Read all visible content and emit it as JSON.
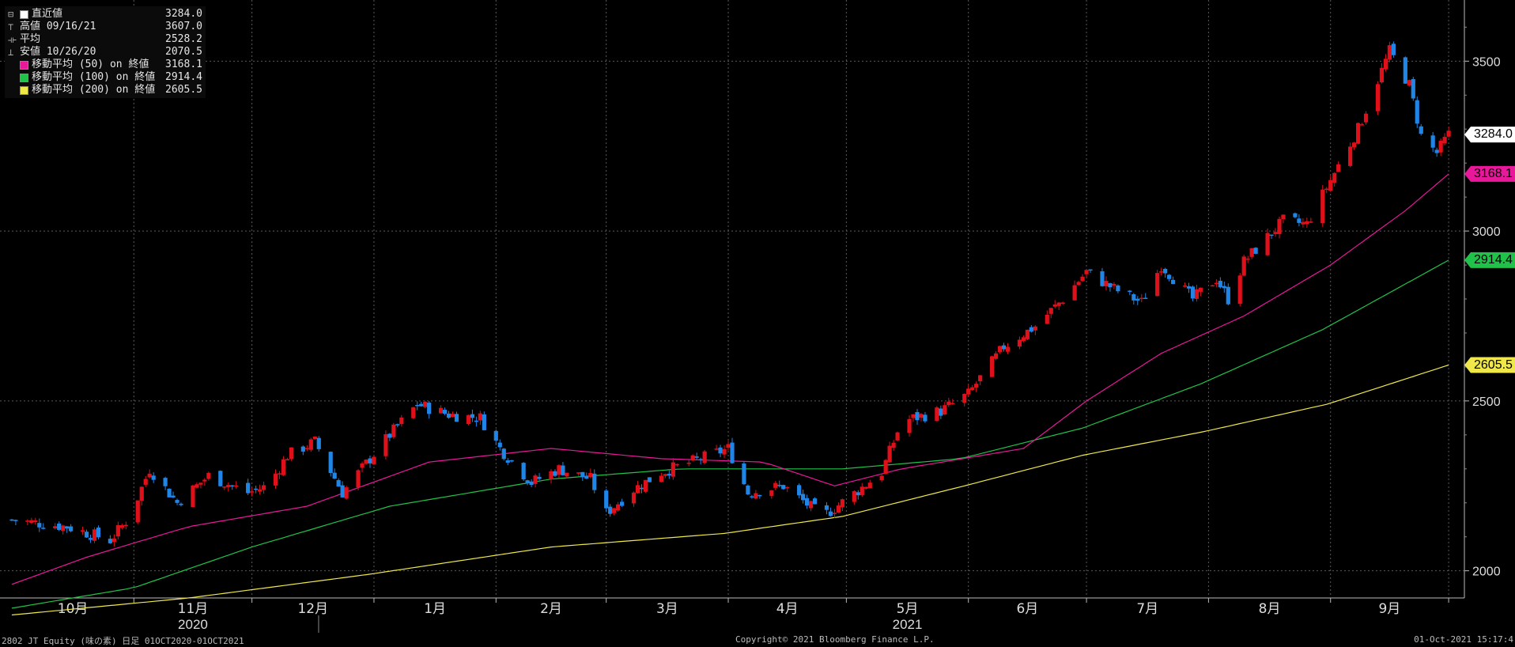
{
  "legend": {
    "items": [
      {
        "label": "直近値",
        "value": "3284.0",
        "color": "#ffffff",
        "kind": "swatch"
      },
      {
        "label": "高値 09/16/21",
        "value": "3607.0",
        "kind": "high-icon"
      },
      {
        "label": "平均",
        "value": "2528.2",
        "kind": "average-icon"
      },
      {
        "label": "安値 10/26/20",
        "value": "2070.5",
        "kind": "low-icon"
      },
      {
        "label": "移動平均 (50) on 終値",
        "value": "3168.1",
        "color": "#e8189a",
        "kind": "swatch"
      },
      {
        "label": "移動平均 (100) on 終値",
        "value": "2914.4",
        "color": "#21c24a",
        "kind": "swatch"
      },
      {
        "label": "移動平均 (200) on 終値",
        "value": "2605.5",
        "color": "#f0e84a",
        "kind": "swatch"
      }
    ]
  },
  "footer": {
    "left": "2802 JT Equity (味の素)  日足 01OCT2020-01OCT2021",
    "center": "Copyright© 2021 Bloomberg Finance L.P.",
    "right": "01-Oct-2021 15:17:4"
  },
  "chart_data": {
    "type": "candlestick",
    "ylim": [
      1920,
      3680
    ],
    "yticks": [
      2000,
      2500,
      3000,
      3500
    ],
    "months": [
      "10月",
      "11月",
      "12月",
      "1月",
      "2月",
      "3月",
      "4月",
      "5月",
      "6月",
      "7月",
      "8月",
      "9月"
    ],
    "years": [
      "2020",
      "2021"
    ],
    "colors": {
      "up": "#e0101a",
      "down": "#1f86e8",
      "grid": "#5a5a5a",
      "ma50": "#e8189a",
      "ma100": "#21c24a",
      "ma200": "#f0e84a"
    },
    "price_keys": [
      [
        "2020-10-01",
        2150
      ],
      [
        "2020-10-15",
        2130
      ],
      [
        "2020-10-26",
        2090
      ],
      [
        "2020-10-31",
        2160
      ],
      [
        "2020-11-05",
        2300
      ],
      [
        "2020-11-12",
        2200
      ],
      [
        "2020-11-20",
        2280
      ],
      [
        "2020-11-30",
        2230
      ],
      [
        "2020-12-05",
        2250
      ],
      [
        "2020-12-10",
        2340
      ],
      [
        "2020-12-17",
        2380
      ],
      [
        "2020-12-24",
        2230
      ],
      [
        "2020-12-31",
        2330
      ],
      [
        "2021-01-05",
        2400
      ],
      [
        "2021-01-12",
        2490
      ],
      [
        "2021-01-20",
        2460
      ],
      [
        "2021-01-28",
        2450
      ],
      [
        "2021-02-02",
        2360
      ],
      [
        "2021-02-10",
        2260
      ],
      [
        "2021-02-17",
        2300
      ],
      [
        "2021-02-25",
        2270
      ],
      [
        "2021-03-01",
        2170
      ],
      [
        "2021-03-08",
        2240
      ],
      [
        "2021-03-15",
        2290
      ],
      [
        "2021-03-25",
        2330
      ],
      [
        "2021-04-01",
        2360
      ],
      [
        "2021-04-06",
        2230
      ],
      [
        "2021-04-15",
        2250
      ],
      [
        "2021-04-25",
        2160
      ],
      [
        "2021-05-01",
        2210
      ],
      [
        "2021-05-10",
        2290
      ],
      [
        "2021-05-15",
        2440
      ],
      [
        "2021-05-25",
        2470
      ],
      [
        "2021-06-01",
        2520
      ],
      [
        "2021-06-10",
        2660
      ],
      [
        "2021-06-18",
        2720
      ],
      [
        "2021-06-25",
        2800
      ],
      [
        "2021-07-01",
        2880
      ],
      [
        "2021-07-08",
        2830
      ],
      [
        "2021-07-15",
        2790
      ],
      [
        "2021-07-20",
        2900
      ],
      [
        "2021-07-28",
        2800
      ],
      [
        "2021-08-03",
        2860
      ],
      [
        "2021-08-06",
        2800
      ],
      [
        "2021-08-10",
        2910
      ],
      [
        "2021-08-20",
        3030
      ],
      [
        "2021-08-26",
        3020
      ],
      [
        "2021-09-01",
        3150
      ],
      [
        "2021-09-08",
        3300
      ],
      [
        "2021-09-16",
        3530
      ],
      [
        "2021-09-21",
        3430
      ],
      [
        "2021-09-24",
        3280
      ],
      [
        "2021-09-28",
        3230
      ],
      [
        "2021-10-01",
        3284
      ]
    ],
    "ma50_keys": [
      [
        "2020-10-01",
        1960
      ],
      [
        "2020-10-20",
        2040
      ],
      [
        "2020-11-15",
        2130
      ],
      [
        "2020-12-15",
        2190
      ],
      [
        "2021-01-15",
        2320
      ],
      [
        "2021-02-15",
        2360
      ],
      [
        "2021-03-15",
        2330
      ],
      [
        "2021-04-10",
        2320
      ],
      [
        "2021-04-28",
        2250
      ],
      [
        "2021-05-15",
        2300
      ],
      [
        "2021-06-15",
        2360
      ],
      [
        "2021-07-01",
        2500
      ],
      [
        "2021-07-20",
        2640
      ],
      [
        "2021-08-10",
        2750
      ],
      [
        "2021-09-01",
        2900
      ],
      [
        "2021-09-20",
        3060
      ],
      [
        "2021-10-01",
        3168.1
      ]
    ],
    "ma100_keys": [
      [
        "2020-10-01",
        1890
      ],
      [
        "2020-11-01",
        1950
      ],
      [
        "2020-12-01",
        2070
      ],
      [
        "2021-01-05",
        2190
      ],
      [
        "2021-02-15",
        2270
      ],
      [
        "2021-03-20",
        2300
      ],
      [
        "2021-04-30",
        2300
      ],
      [
        "2021-05-30",
        2330
      ],
      [
        "2021-06-30",
        2420
      ],
      [
        "2021-07-30",
        2550
      ],
      [
        "2021-08-30",
        2710
      ],
      [
        "2021-10-01",
        2914.4
      ]
    ],
    "ma200_keys": [
      [
        "2020-10-01",
        1870
      ],
      [
        "2020-11-15",
        1920
      ],
      [
        "2020-12-31",
        1990
      ],
      [
        "2021-02-15",
        2070
      ],
      [
        "2021-03-31",
        2110
      ],
      [
        "2021-04-30",
        2160
      ],
      [
        "2021-05-31",
        2250
      ],
      [
        "2021-06-30",
        2340
      ],
      [
        "2021-07-31",
        2410
      ],
      [
        "2021-08-31",
        2490
      ],
      [
        "2021-10-01",
        2605.5
      ]
    ],
    "last_labels": [
      {
        "value": 3284.0,
        "text": "3284.0",
        "color": "#ffffff"
      },
      {
        "value": 3168.1,
        "text": "3168.1",
        "color": "#e8189a"
      },
      {
        "value": 2914.4,
        "text": "2914.4",
        "color": "#21c24a"
      },
      {
        "value": 2605.5,
        "text": "2605.5",
        "color": "#f0e84a"
      }
    ]
  }
}
